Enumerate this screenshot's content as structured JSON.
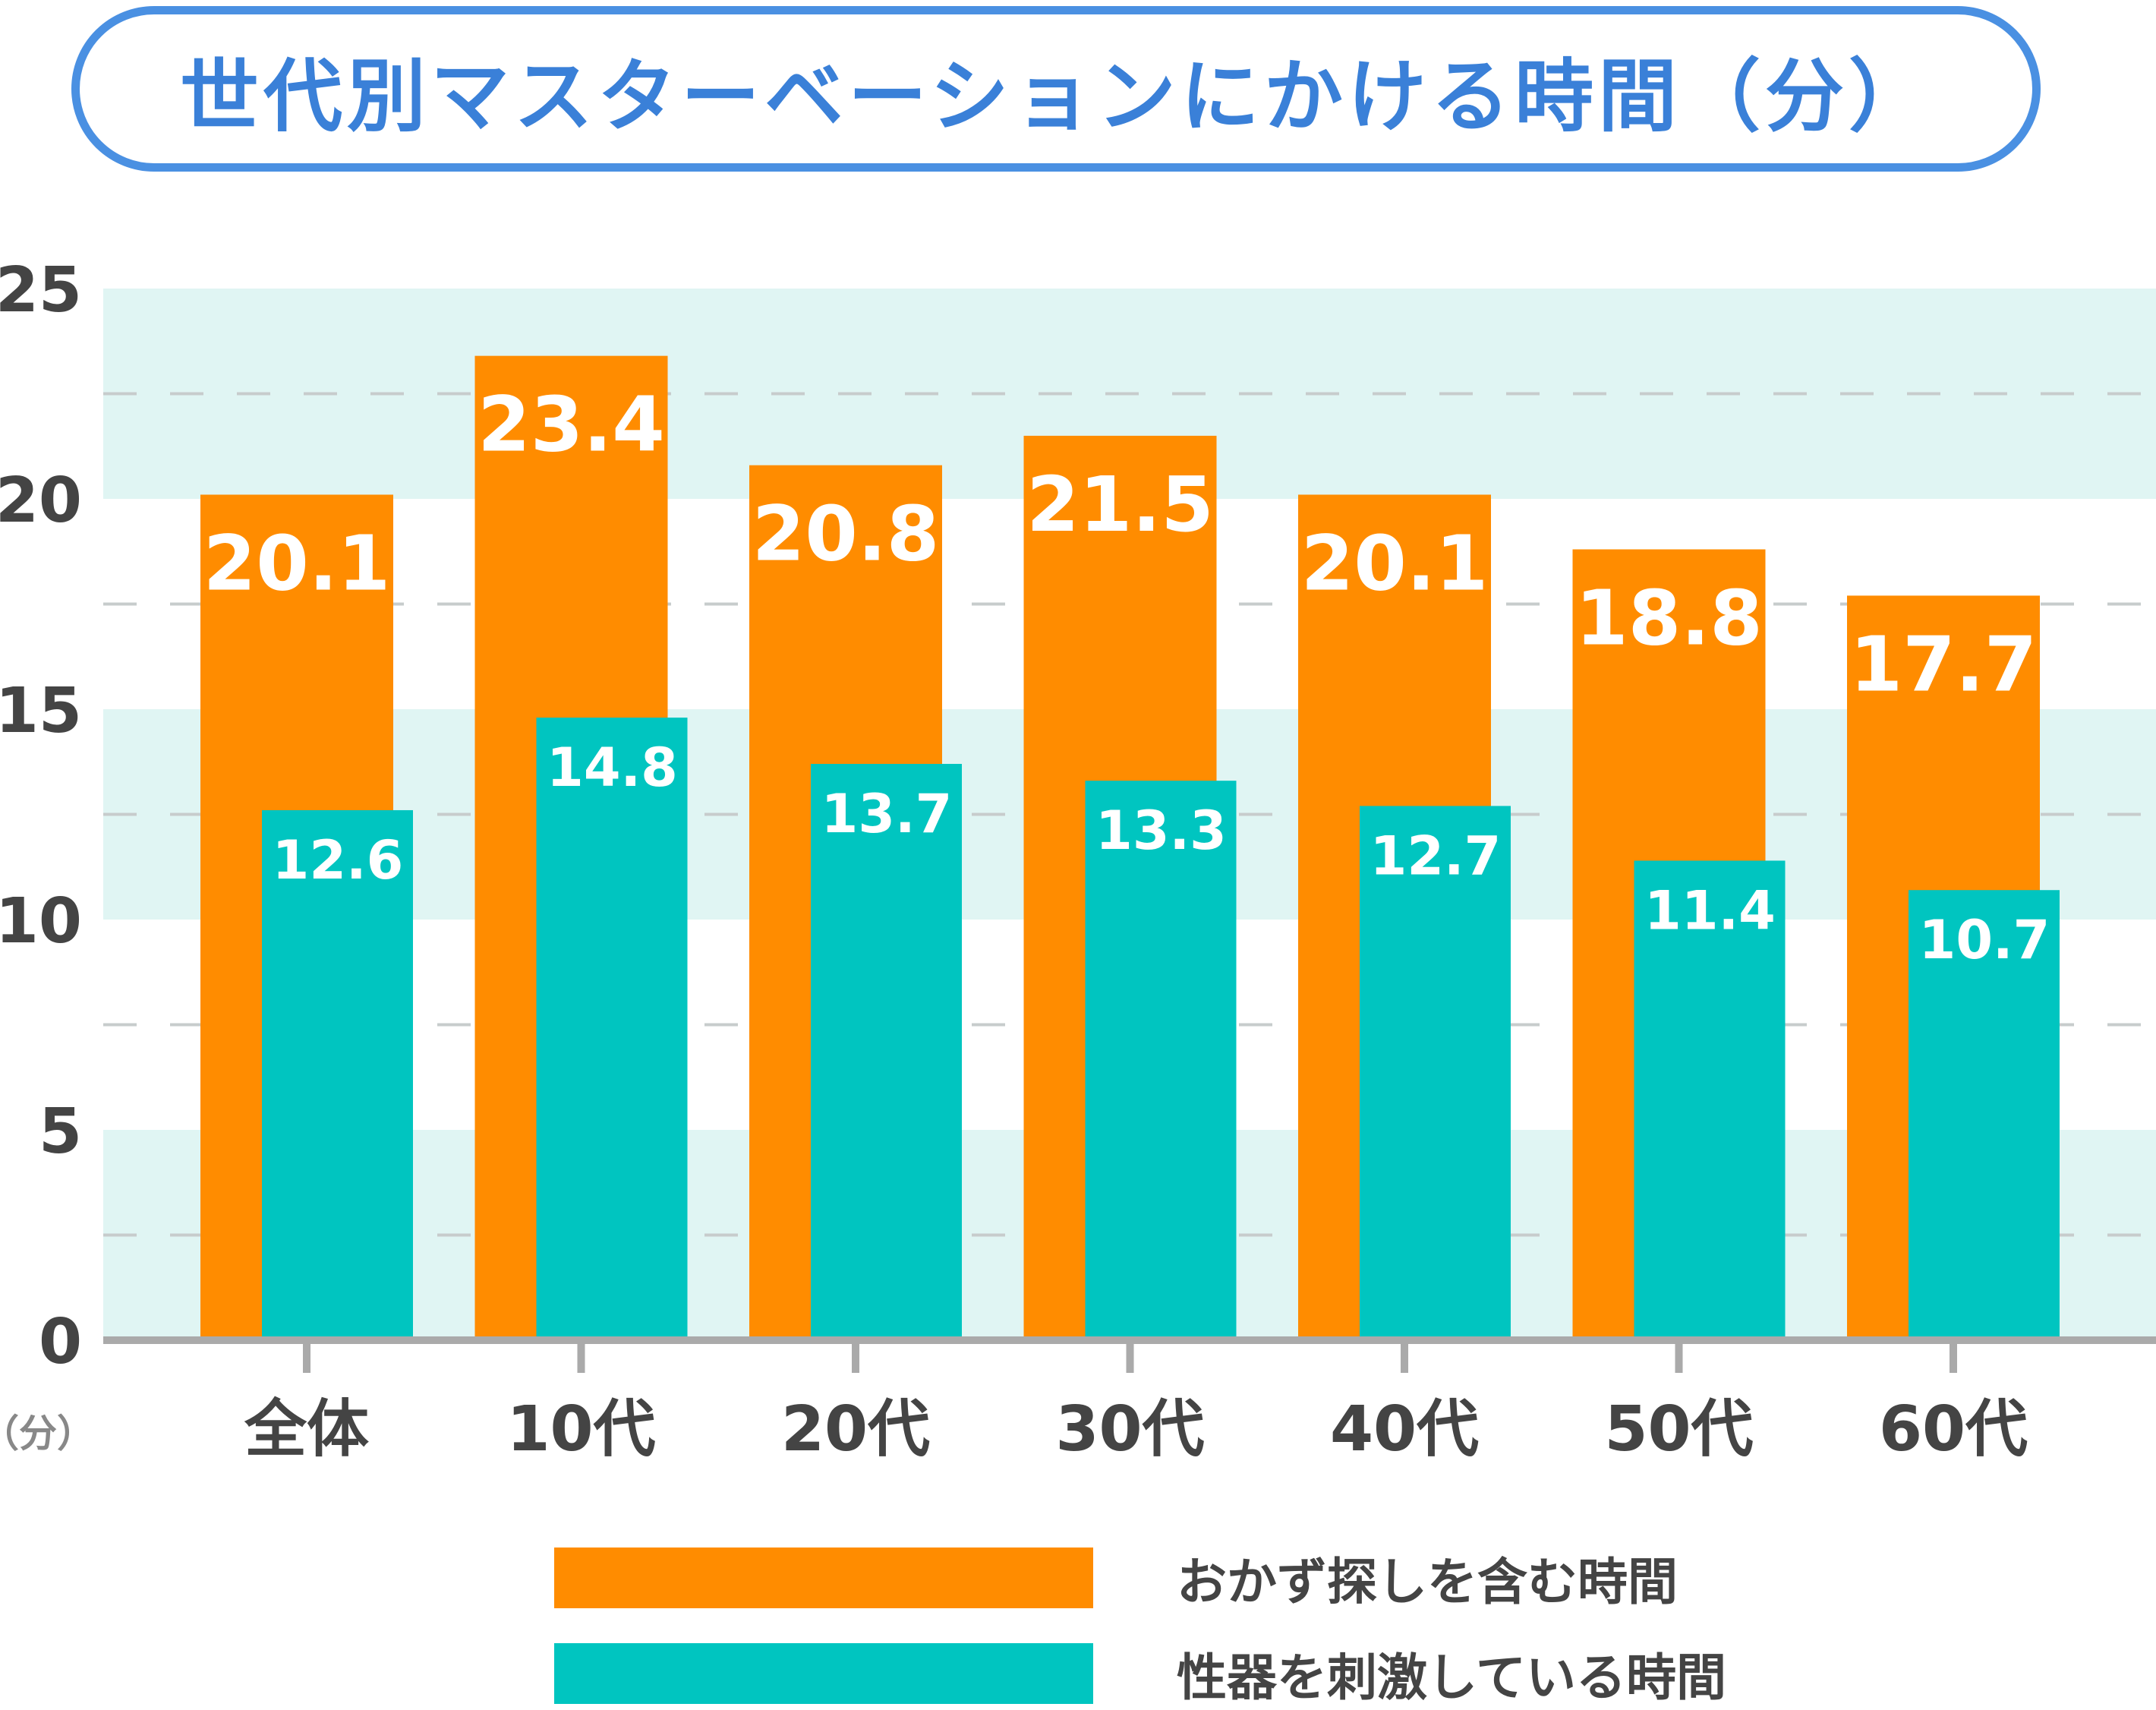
{
  "title": "世代別マスターベーションにかける時間（分）",
  "chart_data": {
    "type": "bar",
    "title": "世代別マスターベーションにかける時間（分）",
    "categories": [
      "全体",
      "10代",
      "20代",
      "30代",
      "40代",
      "50代",
      "60代"
    ],
    "series": [
      {
        "name": "おかず探しを含む時間",
        "color": "#ff8c00",
        "values": [
          20.1,
          23.4,
          20.8,
          21.5,
          20.1,
          18.8,
          17.7
        ]
      },
      {
        "name": "性器を刺激している時間",
        "color": "#00c5c0",
        "values": [
          12.6,
          14.8,
          13.7,
          13.3,
          12.7,
          11.4,
          10.7
        ]
      }
    ],
    "ylim": [
      0,
      25
    ],
    "yticks": [
      0,
      5,
      10,
      15,
      20,
      25
    ],
    "ylabel": "（分）",
    "grid": true,
    "legend": "bottom"
  }
}
